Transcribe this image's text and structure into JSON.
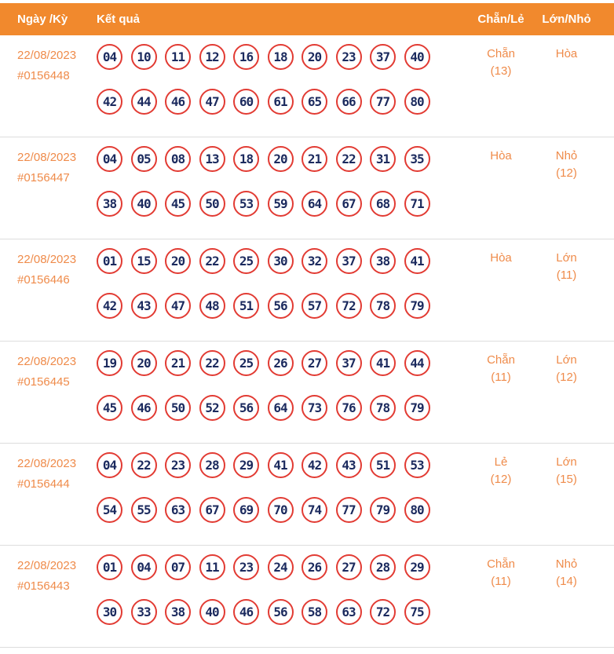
{
  "header": {
    "col_date": "Ngày /Kỳ",
    "col_result": "Kết quả",
    "col_even_odd": "Chẵn/Lẻ",
    "col_big_small": "Lớn/Nhỏ"
  },
  "colors": {
    "header_bg": "#f1892d",
    "header_text": "#ffffff",
    "accent_orange": "#ef8b4a",
    "ball_border": "#e23b33",
    "ball_number": "#1b2a5e",
    "row_divider": "#dddddd",
    "background": "#ffffff"
  },
  "rows": [
    {
      "date": "22/08/2023",
      "draw_id": "#0156448",
      "numbers_line1": [
        "04",
        "10",
        "11",
        "12",
        "16",
        "18",
        "20",
        "23",
        "37",
        "40"
      ],
      "numbers_line2": [
        "42",
        "44",
        "46",
        "47",
        "60",
        "61",
        "65",
        "66",
        "77",
        "80"
      ],
      "even_odd": "Chẵn",
      "even_odd_count": "(13)",
      "big_small": "Hòa",
      "big_small_count": ""
    },
    {
      "date": "22/08/2023",
      "draw_id": "#0156447",
      "numbers_line1": [
        "04",
        "05",
        "08",
        "13",
        "18",
        "20",
        "21",
        "22",
        "31",
        "35"
      ],
      "numbers_line2": [
        "38",
        "40",
        "45",
        "50",
        "53",
        "59",
        "64",
        "67",
        "68",
        "71"
      ],
      "even_odd": "Hòa",
      "even_odd_count": "",
      "big_small": "Nhỏ",
      "big_small_count": "(12)"
    },
    {
      "date": "22/08/2023",
      "draw_id": "#0156446",
      "numbers_line1": [
        "01",
        "15",
        "20",
        "22",
        "25",
        "30",
        "32",
        "37",
        "38",
        "41"
      ],
      "numbers_line2": [
        "42",
        "43",
        "47",
        "48",
        "51",
        "56",
        "57",
        "72",
        "78",
        "79"
      ],
      "even_odd": "Hòa",
      "even_odd_count": "",
      "big_small": "Lớn",
      "big_small_count": "(11)"
    },
    {
      "date": "22/08/2023",
      "draw_id": "#0156445",
      "numbers_line1": [
        "19",
        "20",
        "21",
        "22",
        "25",
        "26",
        "27",
        "37",
        "41",
        "44"
      ],
      "numbers_line2": [
        "45",
        "46",
        "50",
        "52",
        "56",
        "64",
        "73",
        "76",
        "78",
        "79"
      ],
      "even_odd": "Chẵn",
      "even_odd_count": "(11)",
      "big_small": "Lớn",
      "big_small_count": "(12)"
    },
    {
      "date": "22/08/2023",
      "draw_id": "#0156444",
      "numbers_line1": [
        "04",
        "22",
        "23",
        "28",
        "29",
        "41",
        "42",
        "43",
        "51",
        "53"
      ],
      "numbers_line2": [
        "54",
        "55",
        "63",
        "67",
        "69",
        "70",
        "74",
        "77",
        "79",
        "80"
      ],
      "even_odd": "Lẻ",
      "even_odd_count": "(12)",
      "big_small": "Lớn",
      "big_small_count": "(15)"
    },
    {
      "date": "22/08/2023",
      "draw_id": "#0156443",
      "numbers_line1": [
        "01",
        "04",
        "07",
        "11",
        "23",
        "24",
        "26",
        "27",
        "28",
        "29"
      ],
      "numbers_line2": [
        "30",
        "33",
        "38",
        "40",
        "46",
        "56",
        "58",
        "63",
        "72",
        "75"
      ],
      "even_odd": "Chẵn",
      "even_odd_count": "(11)",
      "big_small": "Nhỏ",
      "big_small_count": "(14)"
    }
  ]
}
